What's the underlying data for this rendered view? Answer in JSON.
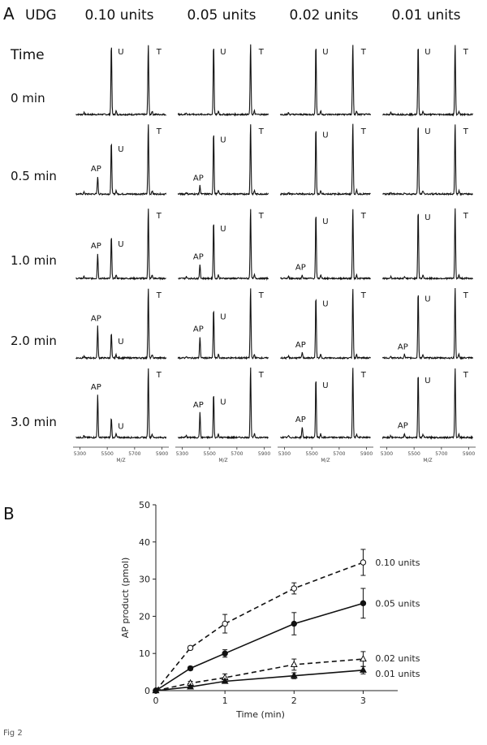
{
  "panel_a_label": "A",
  "panel_b_label": "B",
  "figure_caption": "Fig 2",
  "colors": {
    "trace": "#111111",
    "axis": "#222222"
  },
  "chart_data": [
    {
      "type": "line",
      "title": "",
      "corner_label": "UDG",
      "row_header": "Time",
      "columns": [
        "0.10 units",
        "0.05 units",
        "0.02 units",
        "0.01 units"
      ],
      "rows": [
        "0 min",
        "0.5 min",
        "1.0 min",
        "2.0 min",
        "3.0 min"
      ],
      "peak_labels": {
        "ap": "AP",
        "u": "U",
        "t": "T"
      },
      "peak_positions_mz": {
        "ap": 5430,
        "u": 5530,
        "t": 5800
      },
      "xlabel": "M/Z",
      "xlim": [
        5250,
        5950
      ],
      "xticks": [
        "5300",
        "5500",
        "5700",
        "5900"
      ],
      "peak_heights": {
        "u": [
          [
            1.0,
            0.75,
            0.6,
            0.35,
            0.28
          ],
          [
            1.0,
            0.88,
            0.82,
            0.7,
            0.62
          ],
          [
            1.0,
            0.95,
            0.92,
            0.88,
            0.85
          ],
          [
            1.0,
            1.0,
            0.98,
            0.95,
            0.92
          ]
        ],
        "t": [
          [
            1.0,
            1.0,
            1.0,
            1.0,
            1.0
          ],
          [
            1.0,
            1.0,
            1.0,
            1.0,
            1.0
          ],
          [
            1.0,
            1.0,
            1.0,
            1.0,
            1.0
          ],
          [
            1.0,
            1.0,
            1.0,
            1.0,
            1.0
          ]
        ],
        "ap": [
          [
            0.0,
            0.25,
            0.35,
            0.45,
            0.6
          ],
          [
            0.0,
            0.12,
            0.2,
            0.3,
            0.35
          ],
          [
            0.0,
            0.0,
            0.05,
            0.08,
            0.15
          ],
          [
            0.0,
            0.02,
            0.03,
            0.05,
            0.06
          ]
        ]
      }
    },
    {
      "type": "line",
      "title": "",
      "xlabel": "Time (min)",
      "ylabel": "AP product (pmol)",
      "xlim": [
        0,
        3.5
      ],
      "ylim": [
        0,
        50
      ],
      "xticks": [
        0,
        1,
        2,
        3
      ],
      "yticks": [
        0,
        10,
        20,
        30,
        40,
        50
      ],
      "series": [
        {
          "name": "0.10 units",
          "style": "dashed",
          "marker": "open-circle",
          "x": [
            0,
            0.5,
            1,
            2,
            3
          ],
          "y": [
            0,
            11.5,
            18,
            27.5,
            34.5
          ],
          "err": [
            0,
            0.5,
            2.5,
            1.5,
            3.5
          ]
        },
        {
          "name": "0.05 units",
          "style": "solid",
          "marker": "filled-circle",
          "x": [
            0,
            0.5,
            1,
            2,
            3
          ],
          "y": [
            0,
            6,
            10,
            18,
            23.5
          ],
          "err": [
            0,
            0.5,
            1,
            3,
            4
          ]
        },
        {
          "name": "0.02 units",
          "style": "dashed",
          "marker": "open-triangle",
          "x": [
            0,
            0.5,
            1,
            2,
            3
          ],
          "y": [
            0,
            2,
            3.5,
            7,
            8.5
          ],
          "err": [
            0,
            0.5,
            1,
            1.5,
            2
          ]
        },
        {
          "name": "0.01 units",
          "style": "solid",
          "marker": "filled-triangle",
          "x": [
            0,
            0.5,
            1,
            2,
            3
          ],
          "y": [
            0,
            1,
            2.5,
            4,
            5.5
          ],
          "err": [
            0,
            0.3,
            0.5,
            0.8,
            1
          ]
        }
      ]
    }
  ]
}
